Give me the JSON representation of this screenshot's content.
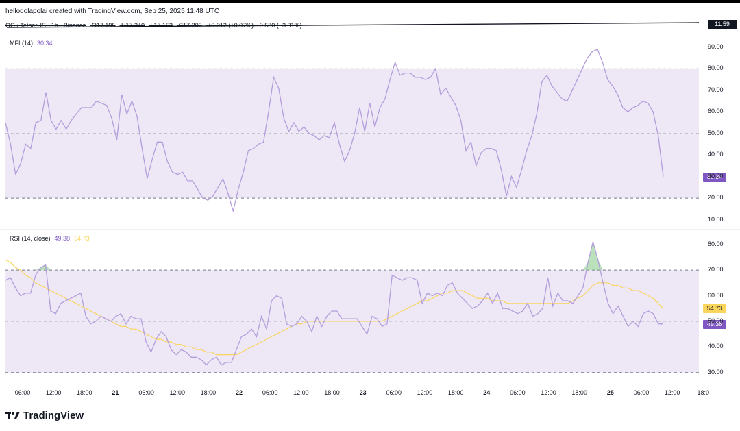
{
  "header": {
    "attribution": "hellodolapolai created with TradingView.com, Sep 25, 2025 11:48 UTC"
  },
  "legend": {
    "symbol": "OG / TetherUS · 1h · Binance",
    "open": "O17.195",
    "high": "H17.340",
    "low": "L17.153",
    "close": "C17.202",
    "change": "+0.012 (+0.07%)",
    "extra": "0.580 (−3.31%)"
  },
  "price_time_box": "11:59",
  "brand": {
    "name": "TradingView"
  },
  "colors": {
    "mfi_line": "#b39ddb",
    "mfi_band": "#ede7f6",
    "rsi_line": "#b39ddb",
    "rsi_ma": "#f9d55b",
    "rsi_band": "#ede7f6",
    "badge_purple": "#7e57c2",
    "badge_yellow": "#f9d55b",
    "overbought_fill": "#66bb6a"
  },
  "chart_data": [
    {
      "type": "line",
      "title": "MFI (14)",
      "value_label": "30.34",
      "ylim": [
        7,
        96
      ],
      "yticks": [
        "90.00",
        "80.00",
        "70.00",
        "60.00",
        "50.00",
        "40.00",
        "30.00",
        "20.00",
        "10.00"
      ],
      "yticks_values": [
        90,
        80,
        70,
        60,
        50,
        40,
        30,
        20,
        10
      ],
      "band": [
        20,
        80
      ],
      "midline": 50,
      "grid": false,
      "legend_position": "top-left",
      "x_labels": [
        "06:00",
        "12:00",
        "18:00",
        "21",
        "06:00",
        "12:00",
        "18:00",
        "22",
        "06:00",
        "12:00",
        "18:00",
        "23",
        "06:00",
        "12:00",
        "18:00",
        "24",
        "06:00",
        "12:00",
        "18:00",
        "25",
        "06:00",
        "12:00",
        "18:0"
      ],
      "series": [
        {
          "values": [
            55,
            45,
            31,
            36,
            45,
            43,
            55,
            56,
            69,
            56,
            52,
            56,
            52,
            56,
            59,
            62,
            62,
            62,
            65,
            64,
            63,
            57,
            47,
            68,
            59,
            65,
            58,
            43,
            29,
            38,
            46,
            46,
            37,
            32,
            31,
            32,
            28,
            28,
            24,
            20,
            19,
            21,
            25,
            29,
            22,
            14,
            24,
            32,
            42,
            43,
            45,
            46,
            60,
            76,
            71,
            57,
            51,
            55,
            51,
            53,
            50,
            49,
            47,
            49,
            48,
            55,
            45,
            37,
            42,
            50,
            62,
            51,
            64,
            53,
            62,
            66,
            75,
            83,
            77,
            78,
            78,
            76,
            76,
            75,
            76,
            80,
            68,
            71,
            67,
            63,
            56,
            42,
            46,
            35,
            41,
            43,
            43,
            42,
            33,
            21,
            30,
            25,
            33,
            42,
            49,
            59,
            74,
            77,
            72,
            69,
            66,
            65,
            70,
            75,
            80,
            85,
            88,
            89,
            83,
            75,
            72,
            68,
            62,
            60,
            62,
            63,
            65,
            64,
            60,
            49,
            30
          ]
        }
      ]
    },
    {
      "type": "line",
      "title": "RSI (14, close)",
      "value_labels": [
        "49.38",
        "54.73"
      ],
      "ylim": [
        27,
        85
      ],
      "yticks": [
        "80.00",
        "70.00",
        "60.00",
        "50.00",
        "40.00",
        "30.00"
      ],
      "yticks_values": [
        80,
        70,
        60,
        50,
        40,
        30
      ],
      "band": [
        30,
        70
      ],
      "midline": 50,
      "grid": false,
      "legend_position": "top-left",
      "series": [
        {
          "name": "RSI",
          "values": [
            66,
            67,
            63,
            60,
            61,
            61,
            68,
            71,
            72,
            54,
            53,
            57,
            58,
            59,
            60,
            61,
            52,
            49,
            50,
            52,
            51,
            50,
            52,
            53,
            49,
            52,
            51,
            51,
            42,
            38,
            43,
            46,
            44,
            39,
            37,
            39,
            38,
            36,
            36,
            35,
            33,
            35,
            36,
            33,
            34,
            34,
            39,
            44,
            45,
            47,
            44,
            52,
            47,
            58,
            60,
            59,
            49,
            48,
            49,
            52,
            50,
            46,
            52,
            48,
            52,
            54,
            54,
            51,
            51,
            51,
            51,
            48,
            45,
            52,
            51,
            48,
            49,
            68,
            67,
            66,
            67,
            67,
            66,
            57,
            61,
            60,
            61,
            60,
            64,
            65,
            61,
            59,
            57,
            55,
            56,
            58,
            61,
            57,
            61,
            55,
            55,
            54,
            53,
            54,
            57,
            52,
            53,
            55,
            67,
            56,
            61,
            58,
            58,
            57,
            60,
            63,
            73,
            81,
            74,
            65,
            57,
            53,
            56,
            52,
            48,
            50,
            48,
            53,
            54,
            53,
            49,
            49
          ]
        },
        {
          "name": "RSI MA",
          "values": [
            74,
            73,
            71,
            70,
            68,
            67,
            65,
            64,
            63,
            62,
            61,
            60,
            59,
            58,
            57,
            56,
            55,
            54,
            53,
            52,
            51,
            50,
            49,
            48,
            48,
            47,
            47,
            46,
            45,
            44,
            43,
            43,
            42,
            42,
            41,
            41,
            40,
            40,
            39,
            39,
            38,
            38,
            37,
            37,
            37,
            37,
            37,
            38,
            39,
            40,
            41,
            42,
            43,
            44,
            45,
            46,
            47,
            48,
            49,
            49,
            50,
            50,
            50,
            50,
            50,
            50,
            50,
            50,
            50,
            50,
            50,
            50,
            50,
            50,
            50,
            50,
            51,
            52,
            53,
            54,
            55,
            56,
            57,
            58,
            58,
            59,
            60,
            61,
            61,
            62,
            62,
            62,
            61,
            60,
            59,
            59,
            59,
            58,
            58,
            58,
            57,
            57,
            57,
            57,
            57,
            57,
            57,
            57,
            57,
            57,
            57,
            57,
            57,
            58,
            59,
            60,
            62,
            64,
            65,
            65,
            65,
            64,
            64,
            63,
            63,
            62,
            62,
            61,
            60,
            59,
            57,
            55
          ]
        }
      ]
    }
  ]
}
